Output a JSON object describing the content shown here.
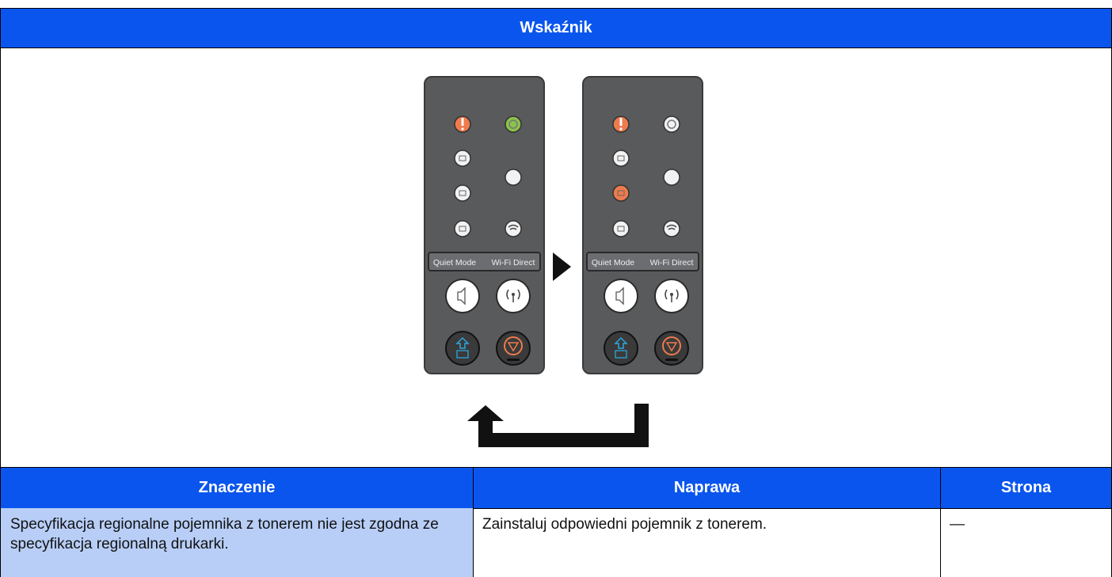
{
  "header": {
    "title": "Wskaźnik"
  },
  "panels": [
    {
      "labels": [
        "Quiet Mode",
        "Wi-Fi Direct"
      ]
    },
    {
      "labels": [
        "Quiet Mode",
        "Wi-Fi Direct"
      ]
    }
  ],
  "table": {
    "columns": [
      "Znaczenie",
      "Naprawa",
      "Strona"
    ],
    "rows": [
      [
        "Specyfikacja regionalne pojemnika z tonerem nie jest zgodna ze specyfikacja regionalną drukarki.",
        "Zainstaluj odpowiedni pojemnik z tonerem.",
        "—"
      ]
    ]
  }
}
